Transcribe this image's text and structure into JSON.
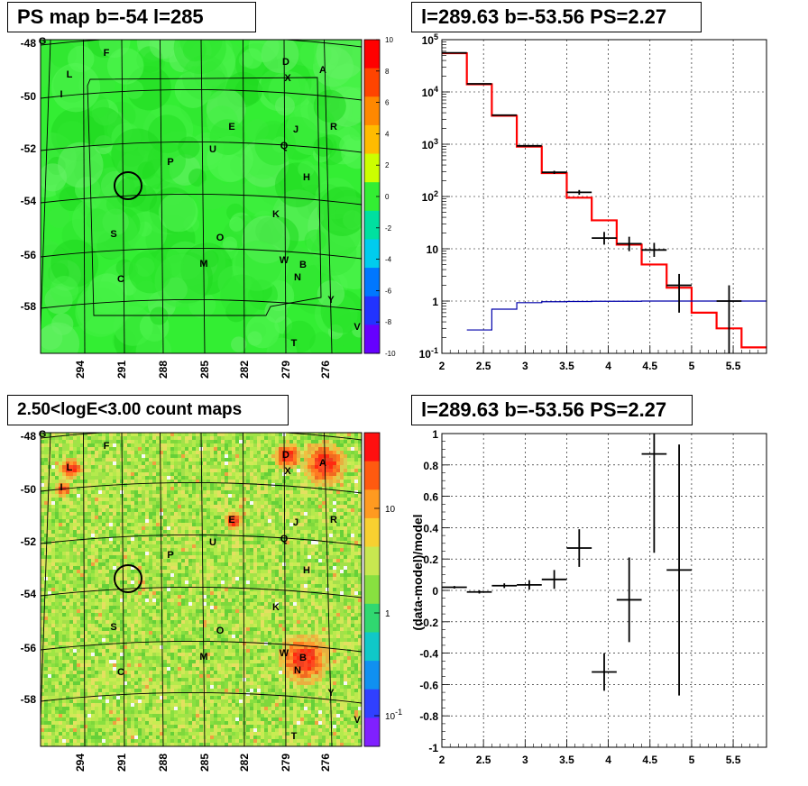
{
  "panels": {
    "top_left_title": "PS map b=-54 l=285",
    "top_right_title": "l=289.63 b=-53.56 PS=2.27",
    "bottom_left_title": "2.50<logE<3.00 count maps",
    "bottom_right_title": "l=289.63 b=-53.56 PS=2.27"
  },
  "maps": {
    "lat_ticks": [
      "-48",
      "-50",
      "-52",
      "-54",
      "-56",
      "-58"
    ],
    "lon_ticks": [
      "294",
      "291",
      "288",
      "285",
      "282",
      "279",
      "276"
    ],
    "sources": [
      "G",
      "F",
      "D",
      "A",
      "L",
      "X",
      "I",
      "R",
      "E",
      "J",
      "U",
      "Q",
      "P",
      "H",
      "K",
      "S",
      "O",
      "M",
      "W",
      "B",
      "N",
      "C",
      "Y",
      "V",
      "T"
    ],
    "ps_colorbar_ticks": [
      "10",
      "8",
      "6",
      "4",
      "2",
      "0",
      "-2",
      "-4",
      "-6",
      "-8",
      "-10"
    ],
    "count_colorbar_ticks": [
      "10",
      "1",
      "10^-1"
    ]
  },
  "chart_data": [
    {
      "type": "line",
      "title": "l=289.63 b=-53.56 PS=2.27",
      "yscale": "log",
      "xlim": [
        2,
        5.9
      ],
      "ylim": [
        0.1,
        100000
      ],
      "grid": true,
      "x_ticks": [
        "2",
        "2.5",
        "3",
        "3.5",
        "4",
        "4.5",
        "5",
        "5.5"
      ],
      "y_ticks": [
        "10^-1",
        "1",
        "10",
        "10^2",
        "10^3",
        "10^4",
        "10^5"
      ],
      "series": [
        {
          "kind": "step",
          "color": "#ff0000",
          "edges": [
            2,
            2.3,
            2.6,
            2.9,
            3.2,
            3.5,
            3.8,
            4.1,
            4.4,
            4.7,
            5.0,
            5.3,
            5.6,
            5.9
          ],
          "values": [
            55000,
            14000,
            3500,
            900,
            280,
            95,
            35,
            12,
            5,
            1.8,
            0.6,
            0.3,
            0.13
          ]
        },
        {
          "kind": "step",
          "color": "#0000aa",
          "edges": [
            2.3,
            2.6,
            2.9,
            3.2,
            3.5,
            3.8,
            4.1,
            4.4,
            4.7,
            5.0,
            5.3,
            5.6,
            5.9
          ],
          "values": [
            0.28,
            0.7,
            0.93,
            0.97,
            0.98,
            0.99,
            0.99,
            1.0,
            1.0,
            1.0,
            1.0,
            1.0
          ]
        },
        {
          "kind": "errorbar",
          "color": "#000000",
          "points": [
            {
              "x": 2.15,
              "y": 56000,
              "xerr": 0.15,
              "ylo": 55000,
              "yhi": 57000
            },
            {
              "x": 2.45,
              "y": 14300,
              "xerr": 0.15,
              "ylo": 14000,
              "yhi": 14600
            },
            {
              "x": 2.75,
              "y": 3600,
              "xerr": 0.15,
              "ylo": 3500,
              "yhi": 3700
            },
            {
              "x": 3.05,
              "y": 930,
              "xerr": 0.15,
              "ylo": 900,
              "yhi": 960
            },
            {
              "x": 3.35,
              "y": 290,
              "xerr": 0.15,
              "ylo": 270,
              "yhi": 310
            },
            {
              "x": 3.65,
              "y": 120,
              "xerr": 0.15,
              "ylo": 108,
              "yhi": 133
            },
            {
              "x": 3.95,
              "y": 16,
              "xerr": 0.15,
              "ylo": 12,
              "yhi": 21
            },
            {
              "x": 4.25,
              "y": 12.5,
              "xerr": 0.15,
              "ylo": 9,
              "yhi": 17
            },
            {
              "x": 4.55,
              "y": 9.5,
              "xerr": 0.15,
              "ylo": 7,
              "yhi": 13
            },
            {
              "x": 4.85,
              "y": 2.0,
              "xerr": 0.15,
              "ylo": 0.6,
              "yhi": 3.3
            },
            {
              "x": 5.45,
              "y": 1.0,
              "xerr": 0.15,
              "ylo": 0.1,
              "yhi": 2.0
            }
          ]
        }
      ]
    },
    {
      "type": "scatter",
      "title": "l=289.63 b=-53.56 PS=2.27",
      "ylabel": "(data-model)/model",
      "xlim": [
        2,
        5.9
      ],
      "ylim": [
        -1,
        1
      ],
      "grid": true,
      "x_ticks": [
        "2",
        "2.5",
        "3",
        "3.5",
        "4",
        "4.5",
        "5",
        "5.5"
      ],
      "y_ticks": [
        "-1",
        "-0.8",
        "-0.6",
        "-0.4",
        "-0.2",
        "0",
        "0.2",
        "0.4",
        "0.6",
        "0.8",
        "1"
      ],
      "points": [
        {
          "x": 2.15,
          "y": 0.02,
          "xerr": 0.15,
          "yerr": 0.008
        },
        {
          "x": 2.45,
          "y": -0.01,
          "xerr": 0.15,
          "yerr": 0.01
        },
        {
          "x": 2.75,
          "y": 0.03,
          "xerr": 0.15,
          "yerr": 0.015
        },
        {
          "x": 3.05,
          "y": 0.035,
          "xerr": 0.15,
          "yerr": 0.03
        },
        {
          "x": 3.35,
          "y": 0.07,
          "xerr": 0.15,
          "yerr": 0.06
        },
        {
          "x": 3.65,
          "y": 0.27,
          "xerr": 0.15,
          "yerr": 0.12
        },
        {
          "x": 3.95,
          "y": -0.52,
          "xerr": 0.15,
          "yerr": 0.12
        },
        {
          "x": 4.25,
          "y": -0.06,
          "xerr": 0.15,
          "yerr": 0.27
        },
        {
          "x": 4.55,
          "y": 0.87,
          "xerr": 0.15,
          "ylo": 0.24,
          "yhi": 1.0
        },
        {
          "x": 4.85,
          "y": 0.13,
          "xerr": 0.15,
          "ylo": -0.67,
          "yhi": 0.93
        }
      ]
    }
  ]
}
